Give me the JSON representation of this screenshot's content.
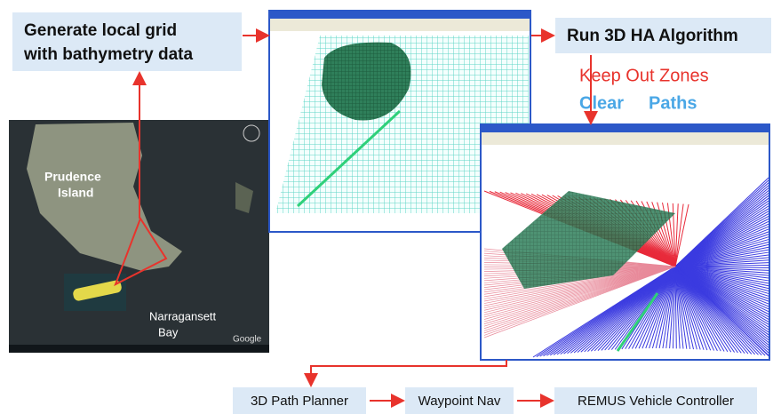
{
  "header_box": {
    "lines": [
      "Generate local grid",
      "with bathymetry data"
    ]
  },
  "algorithm_box": {
    "label": "Run 3D HA Algorithm"
  },
  "legend": {
    "keep_out": "Keep Out Zones",
    "clear": "Clear",
    "paths": "Paths"
  },
  "map": {
    "island": [
      "Prudence",
      "Island"
    ],
    "bay": [
      "Narragansett",
      "Bay"
    ],
    "credit": "Google"
  },
  "pipeline": [
    "3D Path Planner",
    "Waypoint Nav",
    "REMUS Vehicle Controller"
  ]
}
